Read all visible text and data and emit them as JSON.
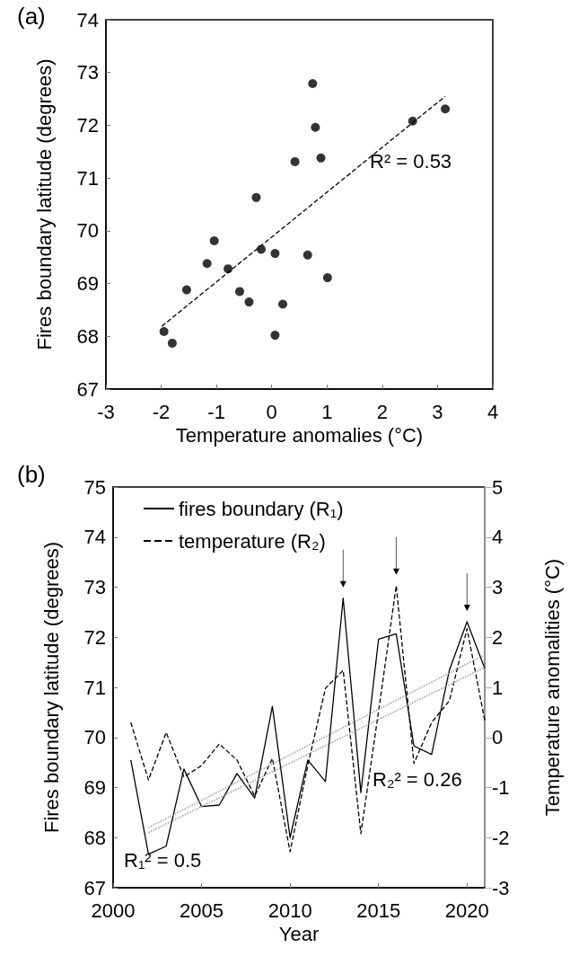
{
  "chart_data": [
    {
      "type": "scatter",
      "title": "(a)",
      "xlabel": "Temperature anomalies (°C)",
      "ylabel": "Fires boundary latitude (degrees)",
      "xlim": [
        -3,
        4
      ],
      "xticks": [
        -3,
        -2,
        -1,
        0,
        1,
        2,
        3,
        4
      ],
      "ylim": [
        67,
        74
      ],
      "yticks": [
        67,
        68,
        69,
        70,
        71,
        72,
        73,
        74
      ],
      "grid": false,
      "legend": false,
      "marker": "circle",
      "annotations": [
        "R² = 0.53"
      ],
      "series": [
        {
          "color": "#000000",
          "x": [
            -1.95,
            -1.8,
            -1.54,
            -1.17,
            -1.04,
            -0.79,
            -0.58,
            -0.41,
            -0.28,
            -0.19,
            0.06,
            0.06,
            0.2,
            0.42,
            0.65,
            0.74,
            0.79,
            0.89,
            1.01,
            2.55,
            3.14
          ],
          "values": [
            68.09,
            67.87,
            68.88,
            69.38,
            69.81,
            69.28,
            68.85,
            68.65,
            70.63,
            69.65,
            69.57,
            68.02,
            68.61,
            71.31,
            69.54,
            72.79,
            71.96,
            71.38,
            69.11,
            72.08,
            72.31
          ]
        },
        {
          "type": "line",
          "color": "#000000",
          "line_style": "dashed",
          "marker": "none",
          "x": [
            -1.99,
            3.14
          ],
          "values": [
            68.19,
            72.55
          ]
        }
      ]
    },
    {
      "type": "line",
      "title": "(b)",
      "xlabel": "Year",
      "ylabel": "Fires boundary latitude (degrees)",
      "y2label": "Temperature anomalities (°C)",
      "xlim": [
        2000,
        2021
      ],
      "xticks": [
        2000,
        2005,
        2010,
        2015,
        2020
      ],
      "ylim": [
        67,
        75
      ],
      "yticks": [
        67,
        68,
        69,
        70,
        71,
        72,
        73,
        74,
        75
      ],
      "y2lim": [
        -3,
        5
      ],
      "y2ticks": [
        -3,
        -2,
        -1,
        0,
        1,
        2,
        3,
        4,
        5
      ],
      "grid": false,
      "legend": "top left",
      "marker": "none",
      "annotations": [
        "R₁² = 0.5",
        "R₂² = 0.26"
      ],
      "x": [
        2001,
        2002,
        2003,
        2004,
        2005,
        2006,
        2007,
        2008,
        2009,
        2010,
        2011,
        2012,
        2013,
        2014,
        2015,
        2016,
        2017,
        2018,
        2019,
        2020,
        2021
      ],
      "series": [
        {
          "name": "fires boundary (R₁)",
          "color": "#000000",
          "line_style": "solid",
          "values": [
            69.55,
            67.67,
            67.83,
            69.37,
            68.62,
            68.65,
            69.28,
            68.79,
            70.62,
            68.0,
            69.55,
            69.12,
            72.78,
            68.9,
            71.96,
            72.07,
            69.83,
            69.66,
            71.34,
            72.31,
            71.38
          ]
        },
        {
          "name": "temperature (R₂)",
          "color": "#000000",
          "line_style": "dashed",
          "axis": "y2",
          "values": [
            0.3,
            -0.85,
            0.1,
            -0.79,
            -0.56,
            -0.13,
            -0.45,
            -1.17,
            -0.42,
            -2.28,
            -0.56,
            0.98,
            1.34,
            -1.92,
            0.52,
            3.03,
            -0.52,
            0.3,
            0.73,
            2.17,
            0.34
          ]
        },
        {
          "color": "#999999",
          "line_style": "dotted",
          "x": [
            2002,
            2021
          ],
          "values": [
            68.1,
            71.4
          ]
        },
        {
          "color": "#999999",
          "line_style": "dotted",
          "axis": "y2",
          "x": [
            2002,
            2021
          ],
          "values": [
            -1.8,
            1.65
          ]
        }
      ]
    }
  ]
}
